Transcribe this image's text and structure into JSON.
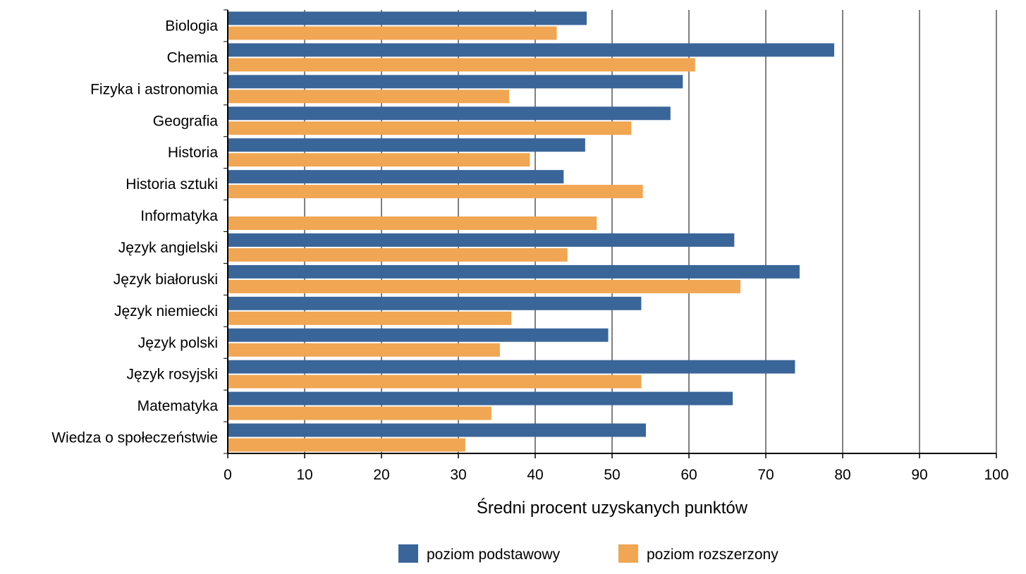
{
  "chart_data": {
    "type": "bar",
    "orientation": "horizontal",
    "categories": [
      "Biologia",
      "Chemia",
      "Fizyka i astronomia",
      "Geografia",
      "Historia",
      "Historia sztuki",
      "Informatyka",
      "Język angielski",
      "Język białoruski",
      "Język niemiecki",
      "Język polski",
      "Język rosyjski",
      "Matematyka",
      "Wiedza o społeczeństwie"
    ],
    "series": [
      {
        "name": "poziom podstawowy",
        "color": "#3a6599",
        "values": [
          46.7,
          78.9,
          59.2,
          57.6,
          46.5,
          43.7,
          0,
          65.9,
          74.4,
          53.8,
          49.5,
          73.8,
          65.7,
          54.4
        ]
      },
      {
        "name": "poziom rozszerzony",
        "color": "#f0a653",
        "values": [
          42.8,
          60.8,
          36.6,
          52.5,
          39.3,
          54.0,
          48.0,
          44.2,
          66.7,
          36.9,
          35.4,
          53.8,
          34.3,
          30.9
        ]
      }
    ],
    "xlabel": "Średni procent uzyskanych punktów",
    "xlim": [
      0,
      100
    ],
    "xticks": [
      "0",
      "10",
      "20",
      "30",
      "40",
      "50",
      "60",
      "70",
      "80",
      "90",
      "100"
    ],
    "grid": "vertical",
    "legend": "bottom"
  }
}
